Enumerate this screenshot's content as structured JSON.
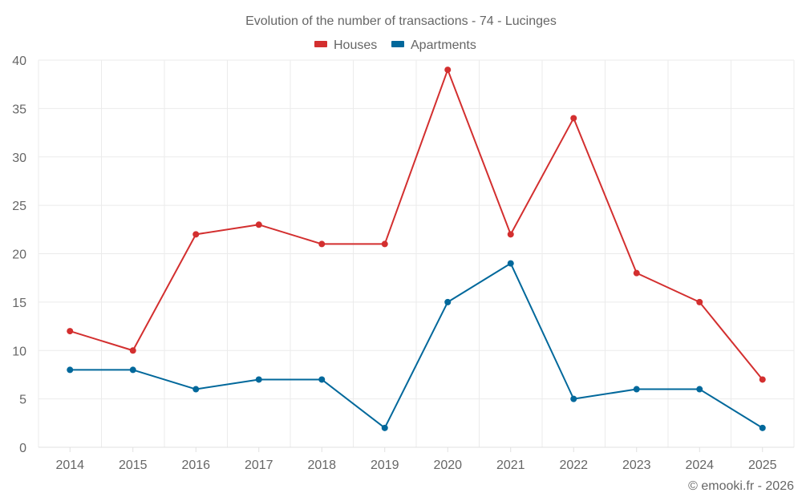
{
  "chart_data": {
    "type": "line",
    "title": "Evolution of the number of transactions - 74 - Lucinges",
    "categories": [
      "2014",
      "2015",
      "2016",
      "2017",
      "2018",
      "2019",
      "2020",
      "2021",
      "2022",
      "2023",
      "2024",
      "2025"
    ],
    "series": [
      {
        "name": "Houses",
        "color": "#d32f2f",
        "values": [
          12,
          10,
          22,
          23,
          21,
          21,
          39,
          22,
          34,
          18,
          15,
          7
        ]
      },
      {
        "name": "Apartments",
        "color": "#01689b",
        "values": [
          8,
          8,
          6,
          7,
          7,
          2,
          15,
          19,
          5,
          6,
          6,
          2
        ]
      }
    ],
    "ylim": [
      0,
      40
    ],
    "yticks": [
      0,
      5,
      10,
      15,
      20,
      25,
      30,
      35,
      40
    ],
    "grid": true,
    "legend_position": "top-center",
    "credit": "© emooki.fr - 2026"
  }
}
